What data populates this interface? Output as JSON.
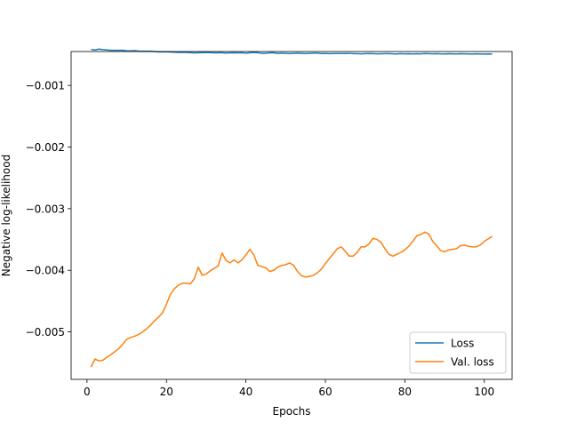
{
  "chart_data": {
    "type": "line",
    "title": "",
    "xlabel": "Epochs",
    "ylabel": "Negative log-likelihood",
    "xlim": [
      -4,
      107
    ],
    "ylim": [
      -0.00577,
      -0.00045
    ],
    "xticks": [
      0,
      20,
      40,
      60,
      80,
      100
    ],
    "xtick_labels": [
      "0",
      "20",
      "40",
      "60",
      "80",
      "100"
    ],
    "yticks": [
      -0.005,
      -0.004,
      -0.003,
      -0.002,
      -0.001
    ],
    "ytick_labels": [
      "−0.005",
      "−0.004",
      "−0.003",
      "−0.002",
      "−0.001"
    ],
    "grid": false,
    "legend_position": "lower-right",
    "series": [
      {
        "name": "Loss",
        "color": "#1f77b4",
        "x": [
          1,
          2,
          3,
          4,
          5,
          6,
          7,
          8,
          9,
          10,
          11,
          12,
          13,
          14,
          15,
          16,
          17,
          18,
          19,
          20,
          21,
          22,
          23,
          24,
          25,
          26,
          27,
          28,
          29,
          30,
          31,
          32,
          33,
          34,
          35,
          36,
          37,
          38,
          39,
          40,
          41,
          42,
          43,
          44,
          45,
          46,
          47,
          48,
          49,
          50,
          51,
          52,
          53,
          54,
          55,
          56,
          57,
          58,
          59,
          60,
          61,
          62,
          63,
          64,
          65,
          66,
          67,
          68,
          69,
          70,
          71,
          72,
          73,
          74,
          75,
          76,
          77,
          78,
          79,
          80,
          81,
          82,
          83,
          84,
          85,
          86,
          87,
          88,
          89,
          90,
          91,
          92,
          93,
          94,
          95,
          96,
          97,
          98,
          99,
          100,
          101,
          102
        ],
        "values": [
          -0.000415,
          -0.000425,
          -0.00041,
          -0.00042,
          -0.000425,
          -0.00043,
          -0.00043,
          -0.00043,
          -0.00043,
          -0.000438,
          -0.00044,
          -0.000435,
          -0.000442,
          -0.000445,
          -0.000445,
          -0.000445,
          -0.00045,
          -0.000455,
          -0.000455,
          -0.000455,
          -0.000458,
          -0.00046,
          -0.000465,
          -0.000465,
          -0.000465,
          -0.000468,
          -0.000472,
          -0.00047,
          -0.000468,
          -0.000465,
          -0.000468,
          -0.000472,
          -0.00047,
          -0.00047,
          -0.000475,
          -0.000472,
          -0.00047,
          -0.000472,
          -0.00047,
          -0.000478,
          -0.00047,
          -0.000465,
          -0.00047,
          -0.000478,
          -0.000478,
          -0.000472,
          -0.00047,
          -0.00048,
          -0.000475,
          -0.000478,
          -0.000482,
          -0.000478,
          -0.000475,
          -0.000478,
          -0.000482,
          -0.000478,
          -0.000476,
          -0.000476,
          -0.000482,
          -0.00048,
          -0.000485,
          -0.000482,
          -0.000482,
          -0.00048,
          -0.000482,
          -0.000478,
          -0.000484,
          -0.000484,
          -0.000488,
          -0.000484,
          -0.000482,
          -0.000484,
          -0.000488,
          -0.000486,
          -0.000484,
          -0.000484,
          -0.000488,
          -0.00049,
          -0.000484,
          -0.000488,
          -0.000486,
          -0.00049,
          -0.000486,
          -0.000488,
          -0.000482,
          -0.000484,
          -0.000488,
          -0.000484,
          -0.000488,
          -0.00049,
          -0.000486,
          -0.000488,
          -0.00049,
          -0.000486,
          -0.000488,
          -0.00049,
          -0.000492,
          -0.000488,
          -0.00049,
          -0.000492,
          -0.00049,
          -0.000492
        ]
      },
      {
        "name": "Val. loss",
        "color": "#ff7f0e",
        "x": [
          1,
          2,
          3,
          4,
          5,
          6,
          7,
          8,
          9,
          10,
          11,
          12,
          13,
          14,
          15,
          16,
          17,
          18,
          19,
          20,
          21,
          22,
          23,
          24,
          25,
          26,
          27,
          28,
          29,
          30,
          31,
          32,
          33,
          34,
          35,
          36,
          37,
          38,
          39,
          40,
          41,
          42,
          43,
          44,
          45,
          46,
          47,
          48,
          49,
          50,
          51,
          52,
          53,
          54,
          55,
          56,
          57,
          58,
          59,
          60,
          61,
          62,
          63,
          64,
          65,
          66,
          67,
          68,
          69,
          70,
          71,
          72,
          73,
          74,
          75,
          76,
          77,
          78,
          79,
          80,
          81,
          82,
          83,
          84,
          85,
          86,
          87,
          88,
          89,
          90,
          91,
          92,
          93,
          94,
          95,
          96,
          97,
          98,
          99,
          100,
          101,
          102
        ],
        "values": [
          -0.00557,
          -0.00544,
          -0.00547,
          -0.00546,
          -0.00541,
          -0.00537,
          -0.00532,
          -0.00527,
          -0.0052,
          -0.00512,
          -0.00509,
          -0.00507,
          -0.00504,
          -0.005,
          -0.00495,
          -0.00489,
          -0.00482,
          -0.00476,
          -0.00469,
          -0.00455,
          -0.00439,
          -0.0043,
          -0.00424,
          -0.00421,
          -0.00421,
          -0.00422,
          -0.00414,
          -0.00395,
          -0.00408,
          -0.00406,
          -0.00401,
          -0.00397,
          -0.00393,
          -0.00372,
          -0.00384,
          -0.00388,
          -0.00383,
          -0.00388,
          -0.00383,
          -0.00375,
          -0.00366,
          -0.00375,
          -0.00392,
          -0.00394,
          -0.00396,
          -0.00402,
          -0.004,
          -0.00395,
          -0.00392,
          -0.00391,
          -0.00388,
          -0.00392,
          -0.00402,
          -0.00409,
          -0.00411,
          -0.0041,
          -0.00408,
          -0.00404,
          -0.00398,
          -0.00389,
          -0.00381,
          -0.00373,
          -0.00365,
          -0.00362,
          -0.00369,
          -0.00377,
          -0.00377,
          -0.00371,
          -0.00362,
          -0.00362,
          -0.00357,
          -0.00348,
          -0.0035,
          -0.00355,
          -0.00365,
          -0.00374,
          -0.00377,
          -0.00374,
          -0.00371,
          -0.00367,
          -0.00361,
          -0.00353,
          -0.00344,
          -0.00342,
          -0.00338,
          -0.00341,
          -0.00353,
          -0.0036,
          -0.00368,
          -0.0037,
          -0.00367,
          -0.00366,
          -0.00365,
          -0.0036,
          -0.00359,
          -0.00361,
          -0.00362,
          -0.00362,
          -0.00359,
          -0.00353,
          -0.00349,
          -0.00345
        ]
      }
    ]
  }
}
